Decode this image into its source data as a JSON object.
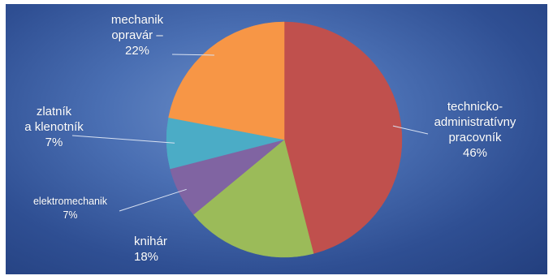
{
  "chart_data": {
    "type": "pie",
    "slices": [
      {
        "label": [
          "technicko-",
          "administratívny",
          "pracovník"
        ],
        "value": 46,
        "value_label": "46%",
        "color": "#c0504d"
      },
      {
        "label": [
          "knihár"
        ],
        "value": 18,
        "value_label": "18%",
        "color": "#9bbb59"
      },
      {
        "label": [
          "elektromechanik"
        ],
        "value": 7,
        "value_label": "7%",
        "color": "#8064a2"
      },
      {
        "label": [
          "zlatník",
          "a klenotník"
        ],
        "value": 7,
        "value_label": "7%",
        "color": "#4bacc6"
      },
      {
        "label": [
          "mechanik",
          "opravár –"
        ],
        "value": 22,
        "value_label": "22%",
        "color": "#f79646"
      }
    ]
  }
}
